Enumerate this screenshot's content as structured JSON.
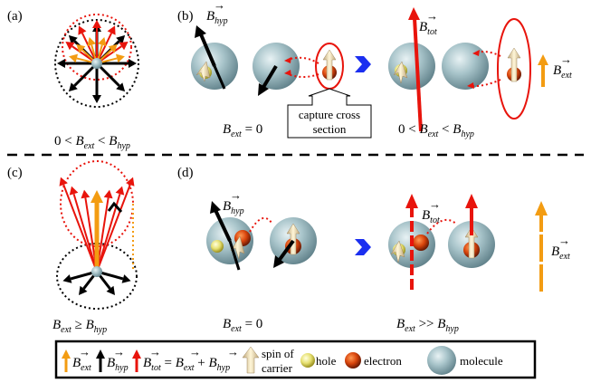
{
  "panels": {
    "a": {
      "label": "(a)",
      "caption": "0 < B_ext < B_hyp"
    },
    "b": {
      "label": "(b)",
      "caption_left": "B_ext = 0",
      "caption_right": "0 < B_ext < B_hyp",
      "callout_line1": "capture cross",
      "callout_line2": "section",
      "b_hyp": "B_hyp",
      "b_tot": "B_tot",
      "b_ext": "B_ext"
    },
    "c": {
      "label": "(c)",
      "caption": "B_ext ≥ B_hyp"
    },
    "d": {
      "label": "(d)",
      "caption_left": "B_ext = 0",
      "caption_right": "B_ext >> B_hyp",
      "b_hyp": "B_hyp",
      "b_tot": "B_tot",
      "b_ext": "B_ext"
    }
  },
  "legend": {
    "b_ext": "B_ext",
    "b_hyp": "B_hyp",
    "b_tot": "B_tot",
    "equation": "= B_ext + B_hyp",
    "spin_line1": "spin of",
    "spin_line2": "carrier",
    "hole": "hole",
    "electron": "electron",
    "molecule": "molecule"
  },
  "colors": {
    "orange": "#f39c12",
    "red": "#e8140c",
    "black": "#000000",
    "blue": "#1b2ff0",
    "molecule": "#8fb0b8"
  }
}
